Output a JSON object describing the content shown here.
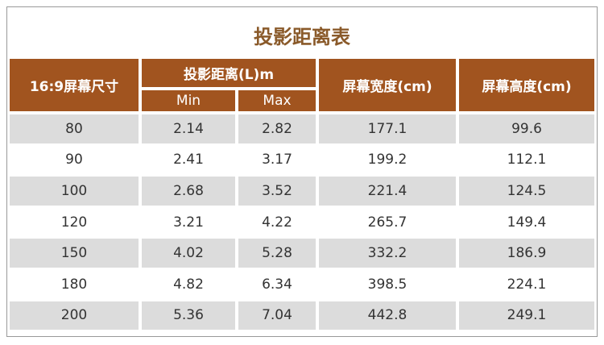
{
  "title": "投影距离表",
  "table": {
    "headers": [
      "16:9屏幕尺寸",
      "投影距离(L)m",
      "屏幕宽度(cm)",
      "屏幕高度(cm)"
    ],
    "subheaders": [
      "Min",
      "Max"
    ],
    "rows": [
      [
        "80",
        "2.14",
        "2.82",
        "177.1",
        "99.6"
      ],
      [
        "90",
        "2.41",
        "3.17",
        "199.2",
        "112.1"
      ],
      [
        "100",
        "2.68",
        "3.52",
        "221.4",
        "124.5"
      ],
      [
        "120",
        "3.21",
        "4.22",
        "265.7",
        "149.4"
      ],
      [
        "150",
        "4.02",
        "5.28",
        "332.2",
        "186.9"
      ],
      [
        "180",
        "4.82",
        "6.34",
        "398.5",
        "224.1"
      ],
      [
        "200",
        "5.36",
        "7.04",
        "442.8",
        "249.1"
      ]
    ]
  }
}
